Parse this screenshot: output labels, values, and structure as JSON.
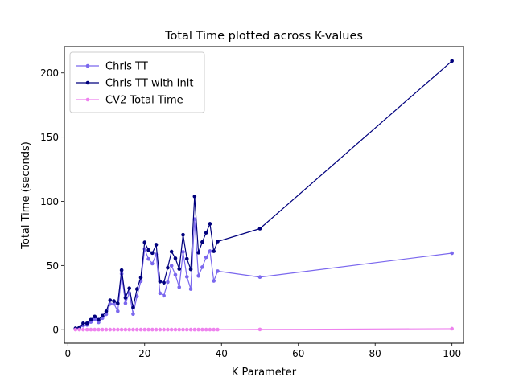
{
  "chart_data": {
    "type": "line",
    "title": "Total Time plotted across K-values",
    "xlabel": "K Parameter",
    "ylabel": "Total Time (seconds)",
    "xlim": [
      -0.9,
      103.0
    ],
    "ylim": [
      -10.5,
      220.5
    ],
    "xticks": [
      0,
      20,
      40,
      60,
      80,
      100
    ],
    "yticks": [
      0,
      50,
      100,
      150,
      200
    ],
    "grid": false,
    "legend_position": "upper-left",
    "x": [
      2,
      3,
      4,
      5,
      6,
      7,
      8,
      9,
      10,
      11,
      12,
      13,
      14,
      15,
      16,
      17,
      18,
      19,
      20,
      21,
      22,
      23,
      24,
      25,
      26,
      27,
      28,
      29,
      30,
      31,
      32,
      33,
      34,
      35,
      36,
      37,
      38,
      39,
      50,
      100
    ],
    "series": [
      {
        "name": "Chris TT",
        "color": "#7b68ee",
        "values": [
          0.8,
          1.3,
          3.2,
          3.7,
          6.0,
          8.0,
          5.7,
          9.0,
          12.0,
          20.0,
          20.2,
          14.4,
          43.5,
          20.6,
          28.5,
          12.2,
          26.0,
          37.8,
          62.8,
          55.1,
          51.5,
          58.6,
          28.4,
          26.5,
          37.1,
          49.8,
          42.8,
          33.1,
          60.6,
          41.2,
          31.7,
          86.1,
          41.9,
          48.7,
          56.4,
          61.2,
          38.0,
          45.6,
          41.0,
          59.6
        ]
      },
      {
        "name": "Chris TT with Init",
        "color": "#00007d",
        "values": [
          1.1,
          1.9,
          5.0,
          5.0,
          7.8,
          10.3,
          7.8,
          10.9,
          14.3,
          23.0,
          22.3,
          20.4,
          46.4,
          24.9,
          32.3,
          17.2,
          31.7,
          40.6,
          68.0,
          62.0,
          59.7,
          66.2,
          37.5,
          36.6,
          48.3,
          60.8,
          55.6,
          47.3,
          73.9,
          55.2,
          47.0,
          103.8,
          60.0,
          68.3,
          75.5,
          82.5,
          61.1,
          68.7,
          78.7,
          209.3
        ]
      },
      {
        "name": "CV2 Total Time",
        "color": "#ee82ee",
        "values": [
          0.1,
          0.1,
          0.1,
          0.1,
          0.1,
          0.1,
          0.1,
          0.1,
          0.1,
          0.1,
          0.1,
          0.1,
          0.1,
          0.1,
          0.1,
          0.1,
          0.1,
          0.1,
          0.1,
          0.1,
          0.1,
          0.1,
          0.1,
          0.1,
          0.1,
          0.1,
          0.1,
          0.1,
          0.1,
          0.1,
          0.1,
          0.1,
          0.1,
          0.1,
          0.1,
          0.1,
          0.1,
          0.1,
          0.2,
          0.8
        ]
      }
    ]
  }
}
